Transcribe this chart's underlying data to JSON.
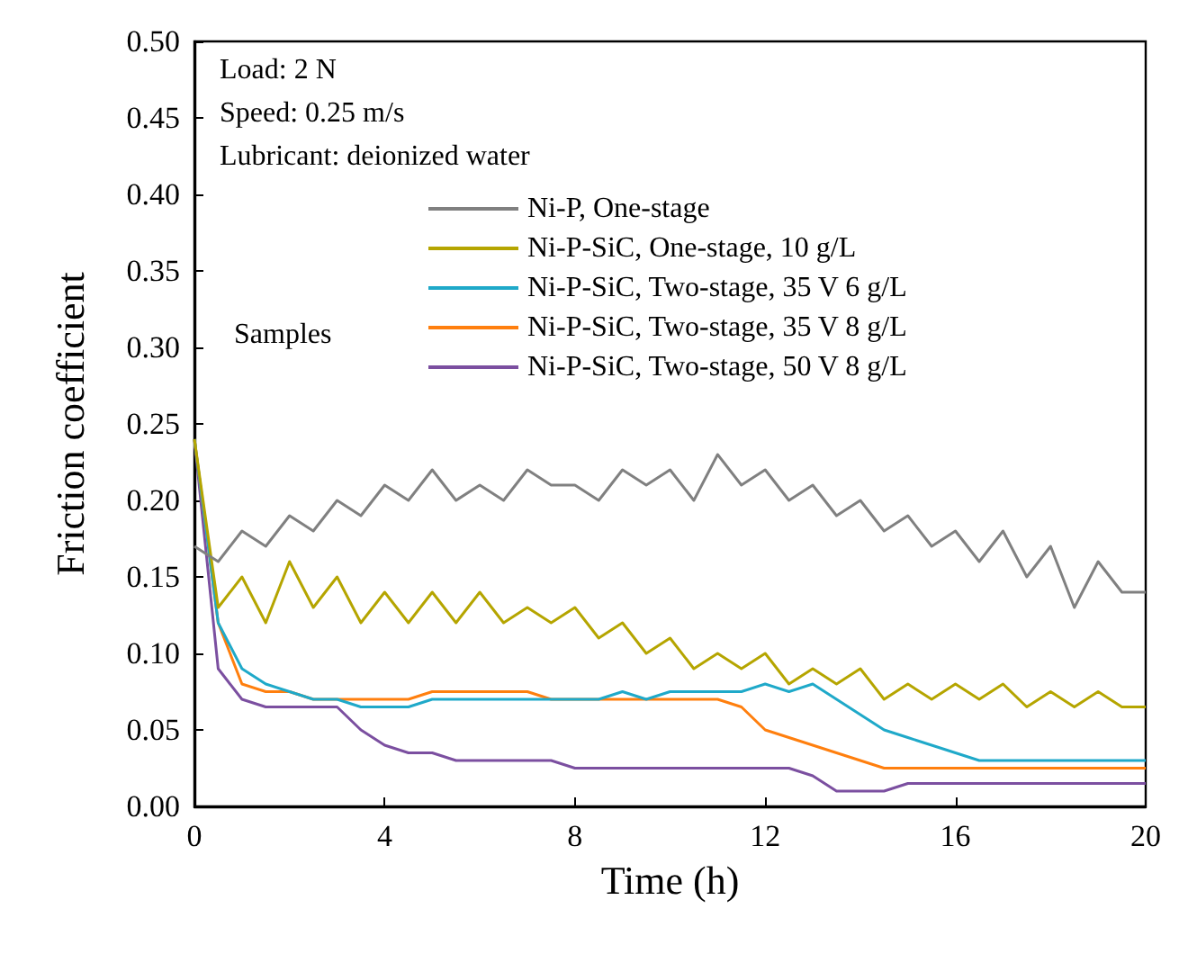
{
  "chart_data": {
    "type": "line",
    "xlabel": "Time (h)",
    "ylabel": "Friction coefficient",
    "legend_title": "Samples",
    "annotations": [
      "Load: 2 N",
      "Speed: 0.25 m/s",
      "Lubricant: deionized water"
    ],
    "x": [
      0,
      0.5,
      1,
      1.5,
      2,
      2.5,
      3,
      3.5,
      4,
      4.5,
      5,
      5.5,
      6,
      6.5,
      7,
      7.5,
      8,
      8.5,
      9,
      9.5,
      10,
      10.5,
      11,
      11.5,
      12,
      12.5,
      13,
      13.5,
      14,
      14.5,
      15,
      15.5,
      16,
      16.5,
      17,
      17.5,
      18,
      18.5,
      19,
      19.5,
      20
    ],
    "series": [
      {
        "name": "Ni-P, One-stage",
        "color": "#808080",
        "values": [
          0.17,
          0.16,
          0.18,
          0.17,
          0.19,
          0.18,
          0.2,
          0.19,
          0.21,
          0.2,
          0.22,
          0.2,
          0.21,
          0.2,
          0.22,
          0.21,
          0.21,
          0.2,
          0.22,
          0.21,
          0.22,
          0.2,
          0.23,
          0.21,
          0.22,
          0.2,
          0.21,
          0.19,
          0.2,
          0.18,
          0.19,
          0.17,
          0.18,
          0.16,
          0.18,
          0.15,
          0.17,
          0.13,
          0.16,
          0.14,
          0.14
        ]
      },
      {
        "name": "Ni-P-SiC, One-stage, 10 g/L",
        "color": "#b5a500",
        "values": [
          0.24,
          0.13,
          0.15,
          0.12,
          0.16,
          0.13,
          0.15,
          0.12,
          0.14,
          0.12,
          0.14,
          0.12,
          0.14,
          0.12,
          0.13,
          0.12,
          0.13,
          0.11,
          0.12,
          0.1,
          0.11,
          0.09,
          0.1,
          0.09,
          0.1,
          0.08,
          0.09,
          0.08,
          0.09,
          0.07,
          0.08,
          0.07,
          0.08,
          0.07,
          0.08,
          0.065,
          0.075,
          0.065,
          0.075,
          0.065,
          0.065
        ]
      },
      {
        "name": "Ni-P-SiC, Two-stage, 35 V 6 g/L",
        "color": "#1fa9c9",
        "values": [
          0.24,
          0.12,
          0.09,
          0.08,
          0.075,
          0.07,
          0.07,
          0.065,
          0.065,
          0.065,
          0.07,
          0.07,
          0.07,
          0.07,
          0.07,
          0.07,
          0.07,
          0.07,
          0.075,
          0.07,
          0.075,
          0.075,
          0.075,
          0.075,
          0.08,
          0.075,
          0.08,
          0.07,
          0.06,
          0.05,
          0.045,
          0.04,
          0.035,
          0.03,
          0.03,
          0.03,
          0.03,
          0.03,
          0.03,
          0.03,
          0.03
        ]
      },
      {
        "name": "Ni-P-SiC, Two-stage, 35 V 8 g/L",
        "color": "#ff7f0e",
        "values": [
          0.24,
          0.12,
          0.08,
          0.075,
          0.075,
          0.07,
          0.07,
          0.07,
          0.07,
          0.07,
          0.075,
          0.075,
          0.075,
          0.075,
          0.075,
          0.07,
          0.07,
          0.07,
          0.07,
          0.07,
          0.07,
          0.07,
          0.07,
          0.065,
          0.05,
          0.045,
          0.04,
          0.035,
          0.03,
          0.025,
          0.025,
          0.025,
          0.025,
          0.025,
          0.025,
          0.025,
          0.025,
          0.025,
          0.025,
          0.025,
          0.025
        ]
      },
      {
        "name": "Ni-P-SiC, Two-stage, 50 V 8 g/L",
        "color": "#7b4fa0",
        "values": [
          0.24,
          0.09,
          0.07,
          0.065,
          0.065,
          0.065,
          0.065,
          0.05,
          0.04,
          0.035,
          0.035,
          0.03,
          0.03,
          0.03,
          0.03,
          0.03,
          0.025,
          0.025,
          0.025,
          0.025,
          0.025,
          0.025,
          0.025,
          0.025,
          0.025,
          0.025,
          0.02,
          0.01,
          0.01,
          0.01,
          0.015,
          0.015,
          0.015,
          0.015,
          0.015,
          0.015,
          0.015,
          0.015,
          0.015,
          0.015,
          0.015
        ]
      }
    ],
    "xlim": [
      0,
      20
    ],
    "xticks": [
      0,
      4,
      8,
      12,
      16,
      20
    ],
    "ylim": [
      0,
      0.5
    ],
    "yticks": [
      {
        "value": 0,
        "label": "0.00"
      },
      {
        "value": 0.05,
        "label": "0.05"
      },
      {
        "value": 0.1,
        "label": "0.10"
      },
      {
        "value": 0.15,
        "label": "0.15"
      },
      {
        "value": 0.2,
        "label": "0.20"
      },
      {
        "value": 0.25,
        "label": "0.25"
      },
      {
        "value": 0.3,
        "label": "0.30"
      },
      {
        "value": 0.35,
        "label": "0.35"
      },
      {
        "value": 0.4,
        "label": "0.40"
      },
      {
        "value": 0.45,
        "label": "0.45"
      },
      {
        "value": 0.5,
        "label": "0.50"
      }
    ],
    "grid": false,
    "legend": "top",
    "marker": "none",
    "line_style": "solid"
  }
}
